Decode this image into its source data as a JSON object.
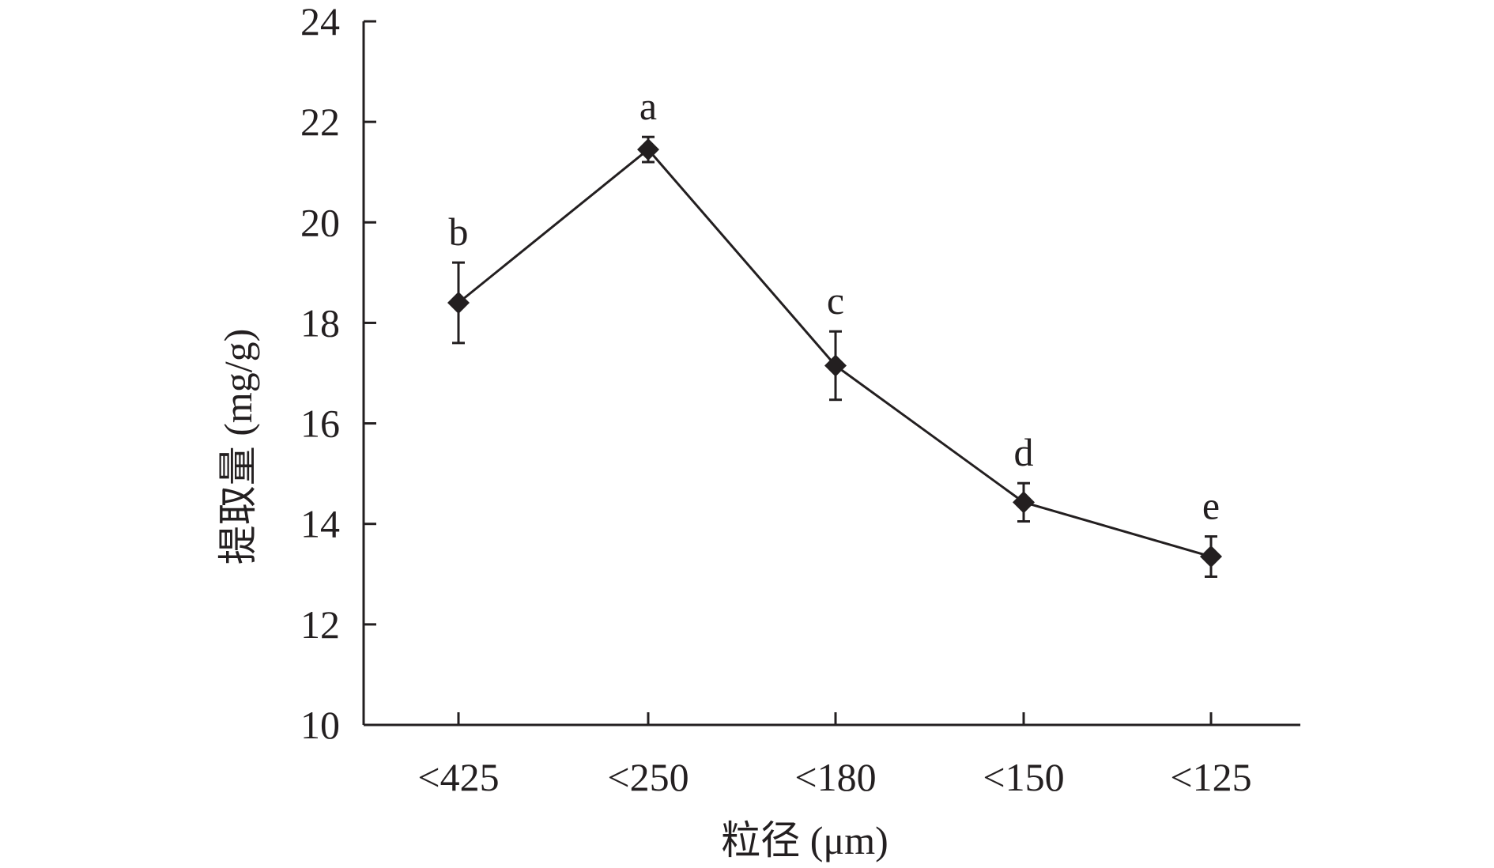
{
  "chart_data": {
    "type": "line",
    "categories": [
      "<425",
      "<250",
      "<180",
      "<150",
      "<125"
    ],
    "values": [
      18.4,
      21.45,
      17.15,
      14.43,
      13.35
    ],
    "error": [
      0.8,
      0.25,
      0.68,
      0.38,
      0.4
    ],
    "significance": [
      "b",
      "a",
      "c",
      "d",
      "e"
    ],
    "xlabel": "粒径 (μm)",
    "ylabel": "提取量 (mg/g)",
    "ylim": [
      10,
      24
    ],
    "yticks": [
      10,
      12,
      14,
      16,
      18,
      20,
      22,
      24
    ],
    "marker": "diamond",
    "color": "#231f20",
    "grid": false,
    "legend": "none"
  }
}
